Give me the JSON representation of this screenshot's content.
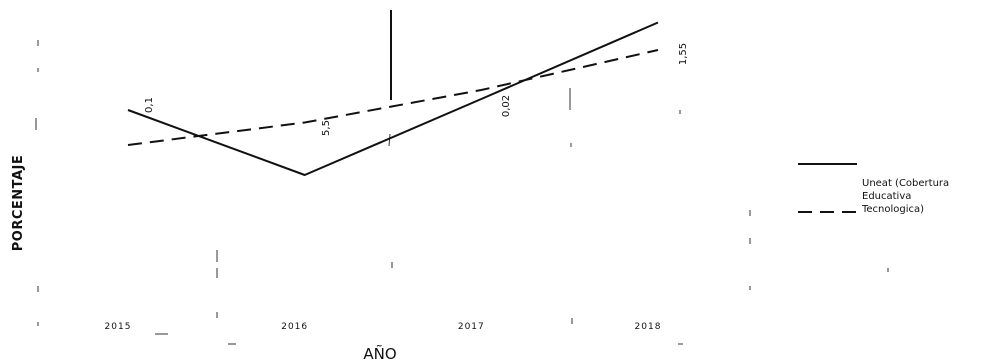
{
  "chart_data": {
    "type": "line",
    "xlabel": "AÑO",
    "ylabel": "PORCENTAJE",
    "title": "",
    "categories": [
      "2015",
      "2016",
      "2017",
      "2018"
    ],
    "ylim": [
      84,
      90
    ],
    "grid": false,
    "legend_position": "right",
    "legend_lines": [
      "Uneat   (Cobertura",
      "Educativa",
      "Tecnologica)"
    ],
    "series": [
      {
        "name": "Uneat (Cobertura Educativa Tecnologica)",
        "style": "solid",
        "color": "#111111",
        "values": [
          87.8,
          86.5,
          88.02,
          89.55
        ]
      },
      {
        "name": "",
        "style": "dashed",
        "color": "#111111",
        "values": [
          87.1,
          87.55,
          88.2,
          89.0
        ]
      }
    ],
    "data_labels": [
      {
        "category": "2015",
        "text": "0,1"
      },
      {
        "category": "2016",
        "text": "5,5"
      },
      {
        "category": "2017",
        "text": "0,02"
      },
      {
        "category": "2018",
        "text": "1,55"
      }
    ]
  }
}
